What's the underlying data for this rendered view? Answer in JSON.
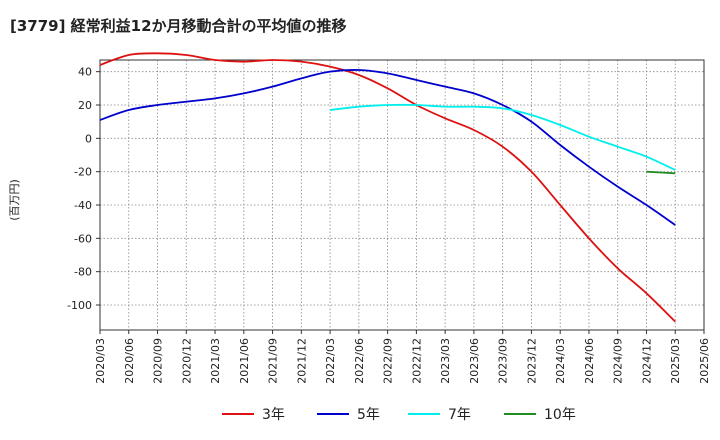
{
  "chart_data": {
    "type": "line",
    "title": "[3779]  経常利益12か月移動合計の平均値の推移",
    "ylabel": "(百万円)",
    "xlabel": "",
    "ylim": [
      -115,
      47
    ],
    "yticks": [
      40,
      20,
      0,
      -20,
      -40,
      -60,
      -80,
      -100
    ],
    "xticks": [
      "2020/03",
      "2020/06",
      "2020/09",
      "2020/12",
      "2021/03",
      "2021/06",
      "2021/09",
      "2021/12",
      "2022/03",
      "2022/06",
      "2022/09",
      "2022/12",
      "2023/03",
      "2023/06",
      "2023/09",
      "2023/12",
      "2024/03",
      "2024/06",
      "2024/09",
      "2024/12",
      "2025/03",
      "2025/06"
    ],
    "grid": true,
    "legend_position": "bottom",
    "series": [
      {
        "name": "3年",
        "color": "#dd1111",
        "x": [
          "2020/03",
          "2020/06",
          "2020/09",
          "2020/12",
          "2021/03",
          "2021/06",
          "2021/09",
          "2021/12",
          "2022/03",
          "2022/06",
          "2022/09",
          "2022/12",
          "2023/03",
          "2023/06",
          "2023/09",
          "2023/12",
          "2024/03",
          "2024/06",
          "2024/09",
          "2024/12",
          "2025/03"
        ],
        "values": [
          44,
          50,
          51,
          50,
          47,
          46,
          47,
          46,
          43,
          38,
          30,
          20,
          12,
          5,
          -5,
          -20,
          -40,
          -60,
          -78,
          -93,
          -110
        ]
      },
      {
        "name": "5年",
        "color": "#0000cc",
        "x": [
          "2020/03",
          "2020/06",
          "2020/09",
          "2020/12",
          "2021/03",
          "2021/06",
          "2021/09",
          "2021/12",
          "2022/03",
          "2022/06",
          "2022/09",
          "2022/12",
          "2023/03",
          "2023/06",
          "2023/09",
          "2023/12",
          "2024/03",
          "2024/06",
          "2024/09",
          "2024/12",
          "2025/03"
        ],
        "values": [
          11,
          17,
          20,
          22,
          24,
          27,
          31,
          36,
          40,
          41,
          39,
          35,
          31,
          27,
          20,
          10,
          -4,
          -17,
          -29,
          -40,
          -52
        ]
      },
      {
        "name": "7年",
        "color": "#00eeee",
        "x": [
          "2022/03",
          "2022/06",
          "2022/09",
          "2022/12",
          "2023/03",
          "2023/06",
          "2023/09",
          "2023/12",
          "2024/03",
          "2024/06",
          "2024/09",
          "2024/12",
          "2025/03"
        ],
        "values": [
          17,
          19,
          20,
          20,
          19,
          19,
          18,
          14,
          8,
          1,
          -5,
          -11,
          -19
        ]
      },
      {
        "name": "10年",
        "color": "#228b22",
        "x": [
          "2024/12",
          "2025/03"
        ],
        "values": [
          -20,
          -21
        ]
      }
    ]
  }
}
